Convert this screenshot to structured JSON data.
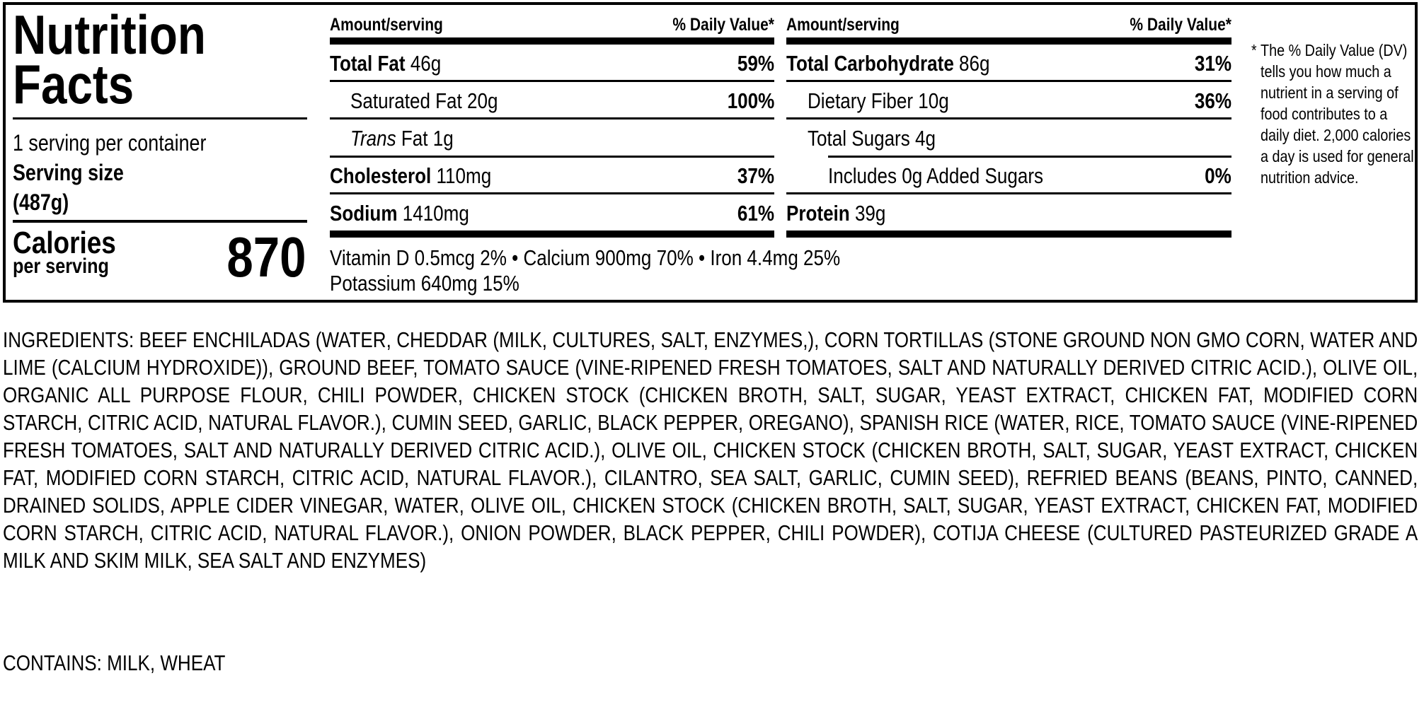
{
  "label": {
    "title_line1": "Nutrition",
    "title_line2": "Facts",
    "servings_per_container": "1 serving per container",
    "serving_size_label": "Serving size",
    "serving_size_value": "(487g)",
    "calories_label": "Calories",
    "calories_sub": "per serving",
    "calories_value": "870",
    "col_header_amount": "Amount/serving",
    "col_header_dv": "% Daily Value*",
    "left_rows": [
      {
        "name": "Total Fat",
        "amount": "46g",
        "dv": "59%"
      },
      {
        "name": "Saturated Fat",
        "amount": "20g",
        "dv": "100%"
      },
      {
        "name": "Trans",
        "name_rest": "Fat",
        "amount": "1g",
        "dv": ""
      },
      {
        "name": "Cholesterol",
        "amount": "110mg",
        "dv": "37%"
      },
      {
        "name": "Sodium",
        "amount": "1410mg",
        "dv": "61%"
      }
    ],
    "right_rows": [
      {
        "name": "Total Carbohydrate",
        "amount": "86g",
        "dv": "31%"
      },
      {
        "name": "Dietary Fiber",
        "amount": "10g",
        "dv": "36%"
      },
      {
        "name": "Total Sugars",
        "amount": "4g",
        "dv": ""
      },
      {
        "name": "Includes 0g Added Sugars",
        "amount": "",
        "dv": "0%"
      },
      {
        "name": "Protein",
        "amount": "39g",
        "dv": ""
      }
    ],
    "micros_line1": "Vitamin D 0.5mcg 2% • Calcium 900mg 70% • Iron 4.4mg 25%",
    "micros_line2": "Potassium 640mg 15%",
    "footnote_asterisk": "*",
    "footnote": "The % Daily Value (DV) tells you how much a nutrient in a serving of food contributes to a daily diet. 2,000 calories a day is used for general nutrition advice."
  },
  "ingredients": "INGREDIENTS: BEEF ENCHILADAS (WATER, CHEDDAR (MILK, CULTURES, SALT, ENZYMES,), CORN TORTILLAS (STONE GROUND NON GMO CORN, WATER AND LIME (CALCIUM HYDROXIDE)), GROUND BEEF, TOMATO SAUCE (VINE-RIPENED FRESH TOMATOES, SALT AND NATURALLY DERIVED CITRIC ACID.), OLIVE OIL, ORGANIC ALL PURPOSE FLOUR, CHILI POWDER, CHICKEN STOCK (CHICKEN BROTH, SALT, SUGAR, YEAST EXTRACT, CHICKEN FAT, MODIFIED CORN STARCH, CITRIC ACID, NATURAL FLAVOR.), CUMIN SEED, GARLIC, BLACK PEPPER, OREGANO), SPANISH RICE (WATER, RICE, TOMATO SAUCE (VINE-RIPENED FRESH TOMATOES, SALT AND NATURALLY DERIVED CITRIC ACID.), OLIVE OIL, CHICKEN STOCK (CHICKEN BROTH, SALT, SUGAR, YEAST EXTRACT, CHICKEN FAT, MODIFIED CORN STARCH, CITRIC ACID, NATURAL FLAVOR.), CILANTRO, SEA SALT, GARLIC, CUMIN SEED), REFRIED BEANS (BEANS, PINTO, CANNED, DRAINED SOLIDS, APPLE CIDER VINEGAR, WATER, OLIVE OIL, CHICKEN STOCK (CHICKEN BROTH, SALT, SUGAR, YEAST EXTRACT, CHICKEN FAT, MODIFIED CORN STARCH, CITRIC ACID, NATURAL FLAVOR.), ONION POWDER, BLACK PEPPER, CHILI POWDER), COTIJA CHEESE (CULTURED PASTEURIZED GRADE A MILK AND SKIM MILK, SEA SALT AND ENZYMES)",
  "contains": "CONTAINS: MILK, WHEAT"
}
